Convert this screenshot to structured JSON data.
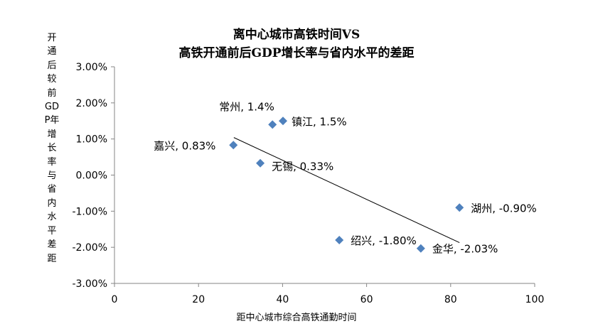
{
  "chart_data": {
    "type": "scatter",
    "title": [
      "离中心城市高铁时间VS",
      "高铁开通前后GDP增长率与省内水平的差距"
    ],
    "xlabel": "距中心城市综合高铁通勤时间",
    "ylabel": "开通后较前GDP年增长率与省内水平差距",
    "xlim": [
      0,
      100
    ],
    "ylim": [
      -3,
      3
    ],
    "x_ticks": [
      "0",
      "20",
      "40",
      "60",
      "80",
      "100"
    ],
    "y_ticks": [
      "3.00%",
      "2.00%",
      "1.00%",
      "0.00%",
      "-1.00%",
      "-2.00%",
      "-3.00%"
    ],
    "grid": false,
    "marker_color": "#4F81BD",
    "points": [
      {
        "label": "常州, 1.4%",
        "x": 37.6,
        "y": 1.4
      },
      {
        "label": "镇江, 1.5%",
        "x": 40.1,
        "y": 1.5
      },
      {
        "label": "嘉兴, 0.83%",
        "x": 28.3,
        "y": 0.83
      },
      {
        "label": "无锡, 0.33%",
        "x": 34.7,
        "y": 0.33
      },
      {
        "label": "湖州, -0.90%",
        "x": 82.1,
        "y": -0.9
      },
      {
        "label": "绍兴, -1.80%",
        "x": 53.5,
        "y": -1.8
      },
      {
        "label": "金华, -2.03%",
        "x": 72.9,
        "y": -2.03
      }
    ],
    "trendline": {
      "x": [
        28.4,
        82.1
      ],
      "y": [
        1.04,
        -1.87
      ]
    }
  }
}
